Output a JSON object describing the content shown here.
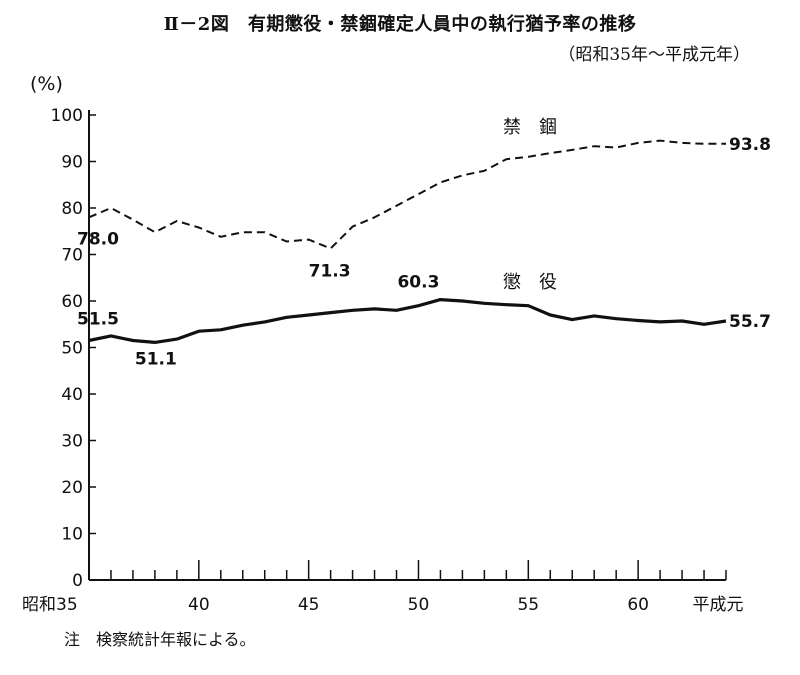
{
  "chart_data": {
    "type": "line",
    "title": "Ⅱ－2図　有期懲役・禁錮確定人員中の執行猶予率の推移",
    "subtitle": "（昭和35年～平成元年）",
    "ylabel": "(%)",
    "xlabel": "",
    "ylim": [
      0,
      100
    ],
    "yticks": [
      0,
      10,
      20,
      30,
      40,
      50,
      60,
      70,
      80,
      90,
      100
    ],
    "xlim": [
      35,
      64
    ],
    "xtick_labels": [
      {
        "x": 35,
        "label": "昭和35"
      },
      {
        "x": 40,
        "label": "40"
      },
      {
        "x": 45,
        "label": "45"
      },
      {
        "x": 50,
        "label": "50"
      },
      {
        "x": 55,
        "label": "55"
      },
      {
        "x": 60,
        "label": "60"
      },
      {
        "x": 64,
        "label": "平成元"
      }
    ],
    "x": [
      35,
      36,
      37,
      38,
      39,
      40,
      41,
      42,
      43,
      44,
      45,
      46,
      47,
      48,
      49,
      50,
      51,
      52,
      53,
      54,
      55,
      56,
      57,
      58,
      59,
      60,
      61,
      62,
      63,
      64
    ],
    "series": [
      {
        "name": "禁　錮",
        "style": "dashed",
        "values": [
          78.0,
          80.0,
          77.5,
          74.8,
          77.2,
          75.8,
          73.8,
          74.8,
          74.8,
          72.8,
          73.2,
          71.3,
          76.0,
          78.0,
          80.5,
          83.0,
          85.5,
          87.0,
          88.0,
          90.5,
          91.0,
          91.8,
          92.5,
          93.3,
          93.0,
          94.0,
          94.5,
          94.0,
          93.8,
          93.8
        ]
      },
      {
        "name": "懲　役",
        "style": "solid",
        "values": [
          51.5,
          52.5,
          51.5,
          51.1,
          51.8,
          53.5,
          53.8,
          54.8,
          55.5,
          56.5,
          57.0,
          57.5,
          58.0,
          58.3,
          58.0,
          59.0,
          60.3,
          60.0,
          59.5,
          59.2,
          59.0,
          57.0,
          56.0,
          56.8,
          56.2,
          55.8,
          55.5,
          55.7,
          55.0,
          55.7
        ]
      }
    ],
    "annotations": [
      {
        "series": 0,
        "x": 35,
        "label": "78.0"
      },
      {
        "series": 0,
        "x": 46,
        "label": "71.3"
      },
      {
        "series": 0,
        "x": 64,
        "label": "93.8"
      },
      {
        "series": 1,
        "x": 35,
        "label": "51.5"
      },
      {
        "series": 1,
        "x": 38,
        "label": "51.1"
      },
      {
        "series": 1,
        "x": 51,
        "label": "60.3"
      },
      {
        "series": 1,
        "x": 64,
        "label": "55.7"
      }
    ],
    "grid": false,
    "legend": "inline labels"
  },
  "note": "注　検察統計年報による。"
}
